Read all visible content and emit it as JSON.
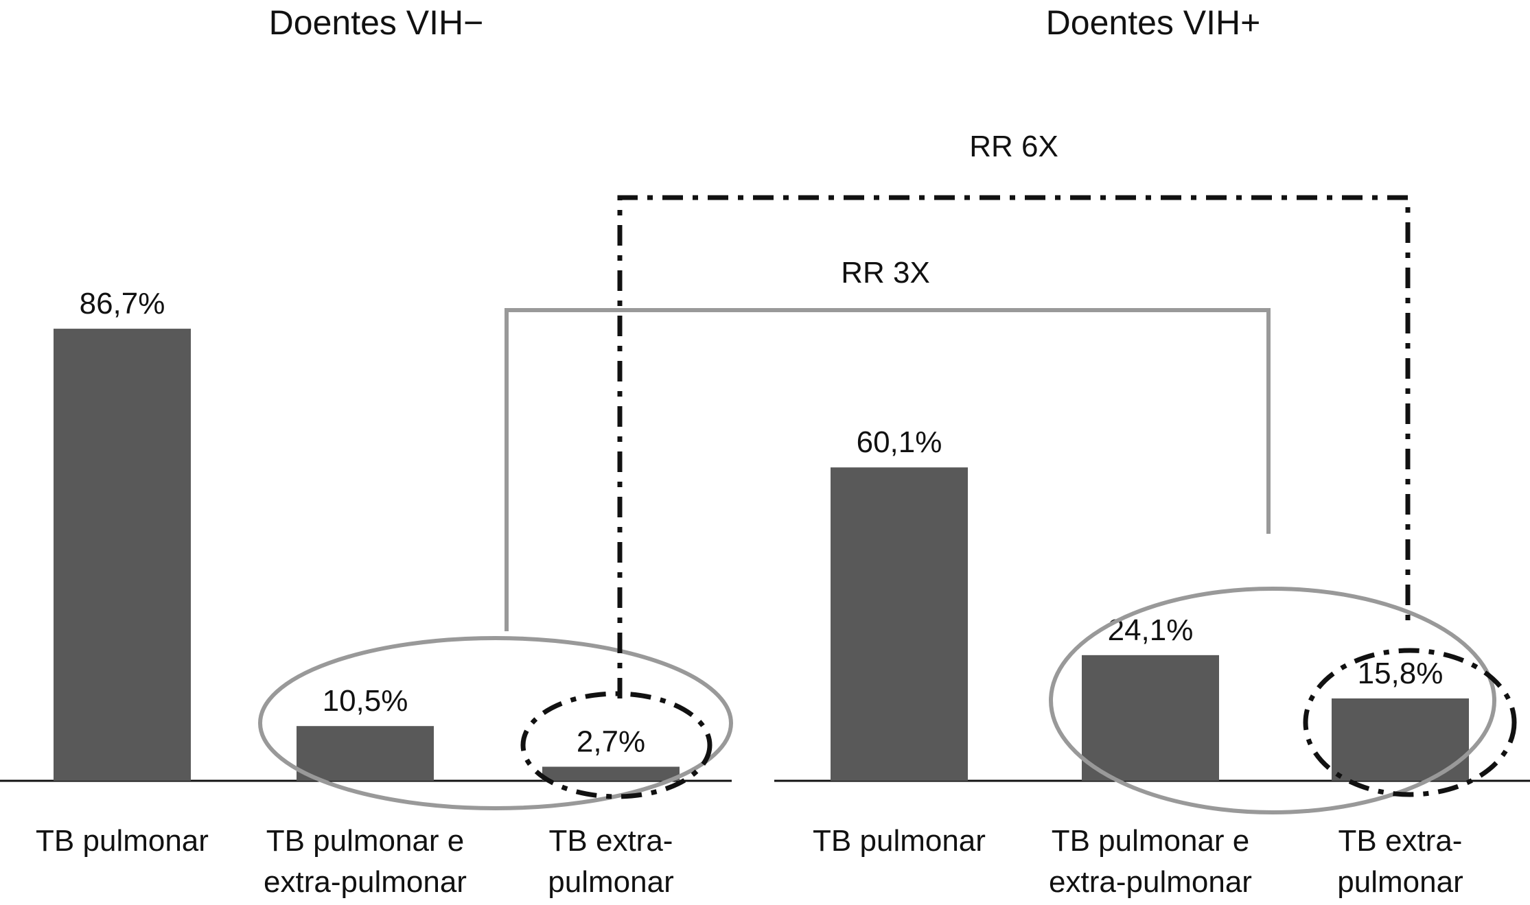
{
  "chart_data": [
    {
      "type": "bar",
      "title": "Doentes VIH−",
      "categories": [
        "TB pulmonar",
        "TB pulmonar e extra-pulmonar",
        "TB extra-pulmonar"
      ],
      "category_lines": [
        [
          "TB pulmonar"
        ],
        [
          "TB pulmonar e",
          "extra-pulmonar"
        ],
        [
          "TB extra-",
          "pulmonar"
        ]
      ],
      "values": [
        86.7,
        10.5,
        2.7
      ],
      "value_labels": [
        "86,7%",
        "10,5%",
        "2,7%"
      ],
      "unit": "%",
      "ylim": [
        0,
        100
      ],
      "color": "#595959"
    },
    {
      "type": "bar",
      "title": "Doentes VIH+",
      "categories": [
        "TB pulmonar",
        "TB pulmonar e extra-pulmonar",
        "TB extra-pulmonar"
      ],
      "category_lines": [
        [
          "TB pulmonar"
        ],
        [
          "TB pulmonar e",
          "extra-pulmonar"
        ],
        [
          "TB extra-",
          "pulmonar"
        ]
      ],
      "values": [
        60.1,
        24.1,
        15.8
      ],
      "value_labels": [
        "60,1%",
        "24,1%",
        "15,8%"
      ],
      "unit": "%",
      "ylim": [
        0,
        100
      ],
      "color": "#595959"
    }
  ],
  "annotations": {
    "rr_extra": "RR 6X",
    "rr_combined": "RR 3X",
    "rr_extra_line_color": "#111111",
    "rr_combined_line_color": "#999999"
  }
}
